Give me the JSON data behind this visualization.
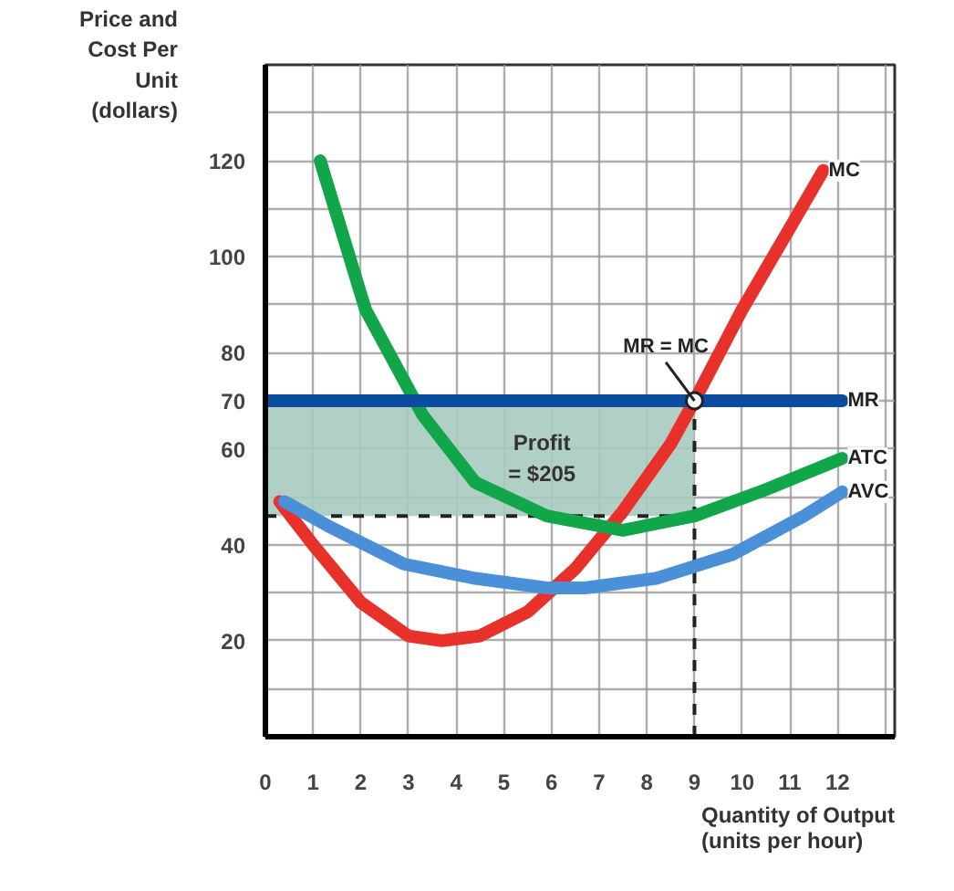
{
  "chart_data": {
    "type": "line",
    "xlabel": "Quantity of Output\n(units per hour)",
    "ylabel": "Price and\nCost Per\nUnit\n(dollars)",
    "xlim": [
      0,
      13.2
    ],
    "ylim": [
      0,
      140
    ],
    "xticks": [
      0,
      1,
      2,
      3,
      4,
      5,
      6,
      7,
      8,
      9,
      10,
      11,
      12,
      {
        "value": 13,
        "label": null
      }
    ],
    "yticks": [
      {
        "value": 10,
        "label": null
      },
      20,
      {
        "value": 30,
        "label": null
      },
      40,
      {
        "value": 50,
        "label": null
      },
      60,
      70,
      80,
      {
        "value": 90,
        "label": null
      },
      100,
      {
        "value": 110,
        "label": null
      },
      120,
      {
        "value": 130,
        "label": null
      }
    ],
    "grid": true,
    "legend": false,
    "line_style": "solid",
    "marker": "none",
    "series": [
      {
        "name": "MC",
        "color": "#e8312a",
        "x": [
          0.3,
          1,
          2,
          3,
          3.7,
          4.5,
          5.5,
          6.5,
          7.5,
          8.5,
          9,
          10,
          11,
          11.7
        ],
        "values": [
          49,
          40,
          28,
          21,
          20,
          21,
          26,
          35,
          47,
          61,
          70,
          89,
          106,
          118
        ]
      },
      {
        "name": "ATC",
        "color": "#12a64a",
        "x": [
          1.15,
          2.1,
          3.3,
          4.4,
          5.9,
          7.5,
          9,
          10.5,
          12.1
        ],
        "values": [
          120,
          89,
          67,
          53,
          46,
          43,
          46,
          51.5,
          58
        ]
      },
      {
        "name": "AVC",
        "color": "#4a90d9",
        "x": [
          0.4,
          1.3,
          2.9,
          4.4,
          5.9,
          6.7,
          8.2,
          9.8,
          11.3,
          12.1
        ],
        "values": [
          49,
          44,
          36,
          33,
          31,
          31,
          33,
          38,
          46,
          51
        ]
      },
      {
        "name": "MR",
        "color": "#0a4ca0",
        "x": [
          0,
          12.1
        ],
        "values": [
          70,
          70
        ]
      }
    ],
    "ref_lines": [
      {
        "axis": "y",
        "value": 46,
        "line_style": "dashed",
        "color": "#222222"
      },
      {
        "axis": "x",
        "value": 9,
        "line_style": "dashed",
        "color": "#222222"
      }
    ],
    "bands": [
      {
        "axis": "y",
        "from": 46,
        "to": 70,
        "label": "Profit\n= $205",
        "color": "#a8cbbf"
      }
    ],
    "annotations": [
      {
        "text": "MR = MC",
        "x": 9,
        "y": 70
      }
    ]
  }
}
